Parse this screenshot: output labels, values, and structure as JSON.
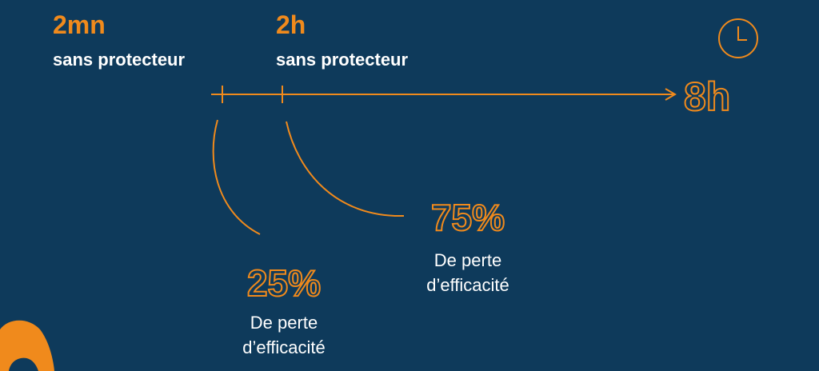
{
  "milestones": [
    {
      "time": "2mn",
      "label": "sans protecteur"
    },
    {
      "time": "2h",
      "label": "sans protecteur"
    }
  ],
  "end": "8h",
  "losses": [
    {
      "value": "25%",
      "line1": "De perte",
      "line2": "d’efficacité"
    },
    {
      "value": "75%",
      "line1": "De perte",
      "line2": "d’efficacité"
    }
  ]
}
